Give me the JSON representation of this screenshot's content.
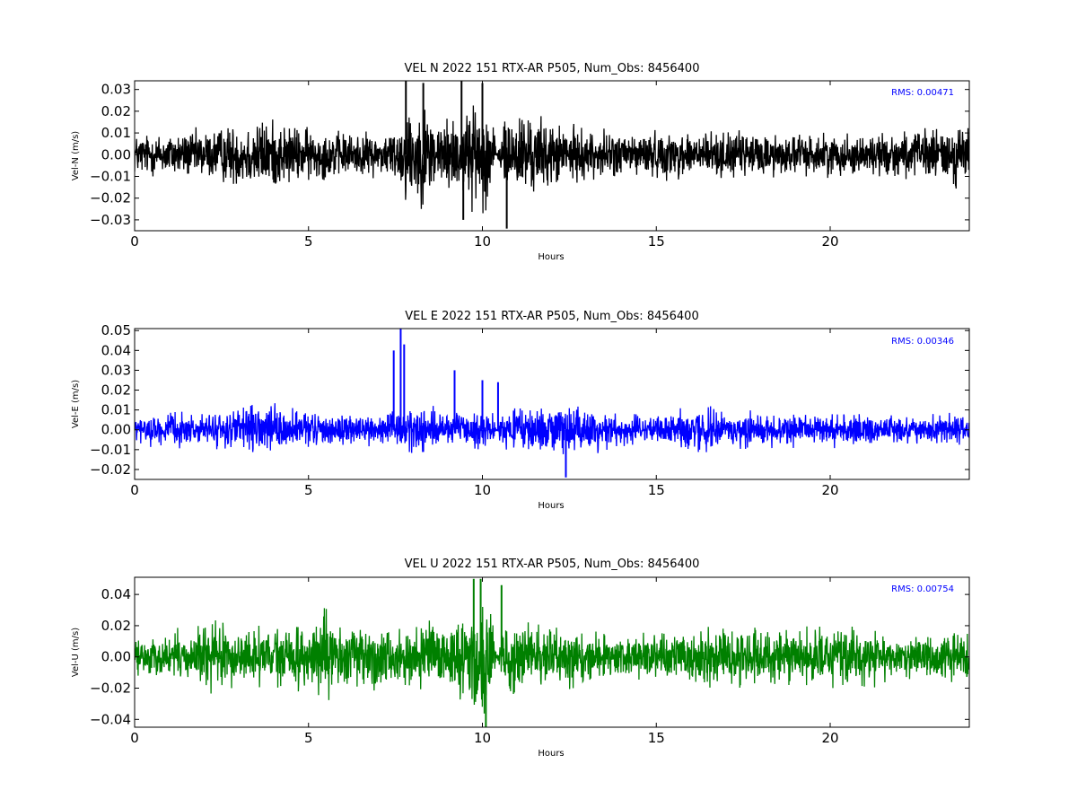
{
  "figure": {
    "background": "#ffffff"
  },
  "chart_data": [
    {
      "type": "line",
      "title": "VEL N 2022 151 RTX-AR  P505, Num_Obs: 8456400",
      "xlabel": "Hours",
      "ylabel": "Vel-N (m/s)",
      "xlim": [
        0,
        24
      ],
      "ylim": [
        -0.035,
        0.034
      ],
      "xticks": [
        0,
        5,
        10,
        15,
        20
      ],
      "yticks": [
        -0.03,
        -0.02,
        -0.01,
        0.0,
        0.01,
        0.02,
        0.03
      ],
      "ytick_labels": [
        "−0.03",
        "−0.02",
        "−0.01",
        "0.00",
        "0.01",
        "0.02",
        "0.03"
      ],
      "color": "#000000",
      "annotation": {
        "text": "RMS:  0.00471",
        "color": "#0000ff",
        "position": "top-right"
      },
      "series": [
        {
          "hours": [
            0,
            1,
            2,
            3,
            3.5,
            4,
            5,
            6,
            7,
            7.5,
            7.8,
            8.3,
            9,
            9.5,
            10,
            10.3,
            10.4,
            10.8,
            11,
            12,
            13,
            14,
            15,
            16,
            17,
            18,
            19,
            20,
            21,
            22,
            23,
            24
          ],
          "envelope": [
            0.011,
            0.012,
            0.013,
            0.017,
            0.019,
            0.018,
            0.014,
            0.012,
            0.011,
            0.014,
            0.026,
            0.025,
            0.019,
            0.024,
            0.028,
            0.026,
            0.0,
            0.028,
            0.024,
            0.017,
            0.013,
            0.012,
            0.012,
            0.013,
            0.012,
            0.012,
            0.011,
            0.011,
            0.011,
            0.012,
            0.014,
            0.018
          ],
          "spikes": [
            [
              7.8,
              0.034
            ],
            [
              8.3,
              0.033
            ],
            [
              9.4,
              0.034
            ],
            [
              9.45,
              -0.03
            ],
            [
              10.0,
              0.033
            ],
            [
              10.7,
              -0.034
            ]
          ]
        }
      ]
    },
    {
      "type": "line",
      "title": "VEL E 2022 151 RTX-AR  P505, Num_Obs: 8456400",
      "xlabel": "Hours",
      "ylabel": "Vel-E (m/s)",
      "xlim": [
        0,
        24
      ],
      "ylim": [
        -0.025,
        0.051
      ],
      "xticks": [
        0,
        5,
        10,
        15,
        20
      ],
      "yticks": [
        -0.02,
        -0.01,
        0.0,
        0.01,
        0.02,
        0.03,
        0.04,
        0.05
      ],
      "ytick_labels": [
        "−0.02",
        "−0.01",
        "0.00",
        "0.01",
        "0.02",
        "0.03",
        "0.04",
        "0.05"
      ],
      "color": "#0000ff",
      "annotation": {
        "text": "RMS:  0.00346",
        "color": "#0000ff",
        "position": "top-right"
      },
      "series": [
        {
          "hours": [
            0,
            1,
            2,
            3,
            3.5,
            4,
            5,
            6,
            7,
            7.5,
            8,
            9,
            10,
            10.3,
            10.4,
            10.6,
            11,
            12,
            12.5,
            13,
            14,
            15,
            16,
            16.5,
            17,
            18,
            19,
            20,
            21,
            22,
            23,
            24
          ],
          "envelope": [
            0.008,
            0.009,
            0.009,
            0.012,
            0.014,
            0.013,
            0.01,
            0.009,
            0.009,
            0.011,
            0.014,
            0.01,
            0.009,
            0.009,
            0.0,
            0.01,
            0.012,
            0.015,
            0.016,
            0.012,
            0.009,
            0.008,
            0.012,
            0.013,
            0.011,
            0.01,
            0.009,
            0.009,
            0.009,
            0.008,
            0.008,
            0.009
          ],
          "spikes": [
            [
              7.45,
              0.04
            ],
            [
              7.65,
              0.051
            ],
            [
              7.75,
              0.043
            ],
            [
              9.2,
              0.03
            ],
            [
              10.0,
              0.025
            ],
            [
              10.45,
              0.024
            ],
            [
              12.4,
              -0.024
            ]
          ]
        }
      ]
    },
    {
      "type": "line",
      "title": "VEL U 2022 151 RTX-AR  P505, Num_Obs: 8456400",
      "xlabel": "Hours",
      "ylabel": "Vel-U (m/s)",
      "xlim": [
        0,
        24
      ],
      "ylim": [
        -0.045,
        0.051
      ],
      "xticks": [
        0,
        5,
        10,
        15,
        20
      ],
      "yticks": [
        -0.04,
        -0.02,
        0.0,
        0.02,
        0.04
      ],
      "ytick_labels": [
        "−0.04",
        "−0.02",
        "0.00",
        "0.02",
        "0.04"
      ],
      "color": "#008000",
      "annotation": {
        "text": "RMS:  0.00754",
        "color": "#0000ff",
        "position": "top-right"
      },
      "series": [
        {
          "hours": [
            0,
            1,
            1.5,
            2,
            3,
            4,
            5,
            5.5,
            6,
            6.5,
            7,
            7.5,
            8,
            9,
            9.5,
            10,
            10.3,
            10.4,
            10.6,
            11,
            12,
            13,
            14,
            15,
            16,
            16.5,
            17,
            18,
            19,
            20,
            21,
            22,
            23,
            24
          ],
          "envelope": [
            0.012,
            0.016,
            0.022,
            0.025,
            0.021,
            0.02,
            0.026,
            0.028,
            0.02,
            0.026,
            0.028,
            0.016,
            0.022,
            0.024,
            0.034,
            0.04,
            0.038,
            0.0,
            0.025,
            0.026,
            0.021,
            0.018,
            0.015,
            0.016,
            0.022,
            0.025,
            0.024,
            0.02,
            0.019,
            0.022,
            0.02,
            0.016,
            0.016,
            0.02
          ],
          "spikes": [
            [
              9.75,
              0.05
            ],
            [
              9.95,
              0.05
            ],
            [
              10.1,
              -0.045
            ],
            [
              10.55,
              0.046
            ]
          ]
        }
      ]
    }
  ]
}
